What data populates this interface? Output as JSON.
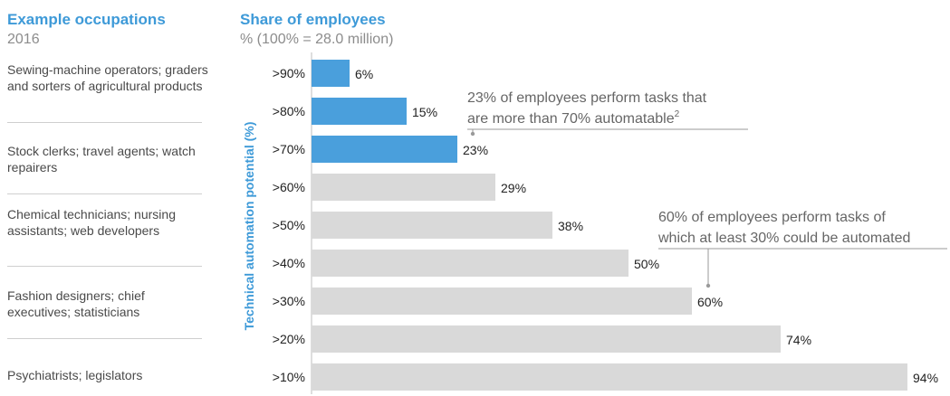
{
  "header": {
    "occupations_title": "Example occupations",
    "occupations_sub": "2016",
    "share_title": "Share of employees",
    "share_sub": "% (100% = 28.0 million)"
  },
  "occupations": [
    "Sewing-machine operators; graders and sorters of agricultural products",
    "Stock clerks; travel agents; watch repairers",
    "Chemical technicians; nursing assistants; web developers",
    "Fashion designers; chief executives; statisticians",
    "Psychiatrists; legislators"
  ],
  "colors": {
    "highlight": "#4a9fdc",
    "base": "#d9d9d9",
    "accent_text": "#3e9ad8"
  },
  "chart_data": {
    "type": "bar",
    "orientation": "horizontal",
    "ylabel": "Technical automation potential (%)",
    "categories": [
      ">90%",
      ">80%",
      ">70%",
      ">60%",
      ">50%",
      ">40%",
      ">30%",
      ">20%",
      ">10%"
    ],
    "values": [
      6,
      15,
      23,
      29,
      38,
      50,
      60,
      74,
      94
    ],
    "value_labels": [
      "6%",
      "15%",
      "23%",
      "29%",
      "38%",
      "50%",
      "60%",
      "74%",
      "94%"
    ],
    "highlighted": [
      true,
      true,
      true,
      false,
      false,
      false,
      false,
      false,
      false
    ],
    "xlim": [
      0,
      100
    ],
    "annotations": [
      {
        "lines": [
          "23% of employees perform tasks that",
          "are more than 70% automatable"
        ],
        "superscript": "2",
        "points_to": ">70%"
      },
      {
        "lines": [
          "60% of employees perform tasks of",
          "which at least 30% could be automated"
        ],
        "superscript": "",
        "points_to": ">30%"
      }
    ]
  }
}
